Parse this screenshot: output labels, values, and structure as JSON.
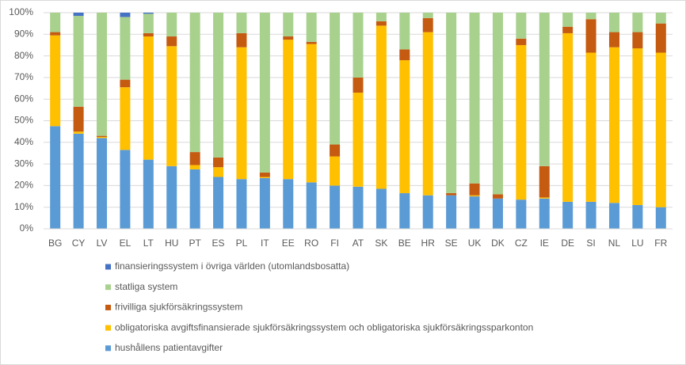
{
  "chart_data": {
    "type": "stacked_bar",
    "categories": [
      "BG",
      "CY",
      "LV",
      "EL",
      "LT",
      "HU",
      "PT",
      "ES",
      "PL",
      "IT",
      "EE",
      "RO",
      "FI",
      "AT",
      "SK",
      "BE",
      "HR",
      "SE",
      "UK",
      "DK",
      "CZ",
      "IE",
      "DE",
      "SI",
      "NL",
      "LU",
      "FR"
    ],
    "series": [
      {
        "name": "hushållens patientavgifter",
        "color": "#5b9bd5",
        "values": [
          47.5,
          44,
          42,
          36.5,
          32,
          29,
          27.5,
          24,
          23,
          23.5,
          23,
          21.5,
          20,
          19.5,
          18.5,
          16.5,
          15.5,
          15.5,
          15,
          14,
          13.5,
          14,
          12.5,
          12.5,
          12,
          11,
          10
        ]
      },
      {
        "name": "obligatoriska avgiftsfinansierade sjukförsäkringssystem och obligatoriska sjukförsäkringssparkonton",
        "color": "#ffc000",
        "values": [
          42,
          1,
          0.5,
          29,
          57,
          55.5,
          2,
          4.5,
          61,
          0.5,
          64.5,
          64,
          13.5,
          43.5,
          75.5,
          61.5,
          75.5,
          0,
          0.5,
          0,
          71.5,
          0.5,
          78,
          69,
          72,
          72.5,
          71.5
        ]
      },
      {
        "name": "frivilliga sjukförsäkringssystem",
        "color": "#c55a11",
        "values": [
          1.5,
          11.5,
          0.5,
          3.5,
          1.5,
          4.5,
          6,
          4.5,
          6.5,
          2,
          1.5,
          1,
          5.5,
          7,
          2,
          5,
          6.5,
          1,
          5.5,
          2,
          3,
          14.5,
          3,
          15.5,
          7,
          7.5,
          13.5
        ]
      },
      {
        "name": "statliga system",
        "color": "#a9d18e",
        "values": [
          9,
          42,
          57,
          29,
          9,
          11,
          64.5,
          67,
          9.5,
          74,
          11,
          13.5,
          61,
          30,
          4,
          17,
          2.5,
          83.5,
          79,
          84,
          12,
          71,
          6.5,
          3,
          9,
          9,
          5
        ]
      },
      {
        "name": "finansieringssystem i övriga världen (utomlandsbosatta)",
        "color": "#4472c4",
        "values": [
          0,
          1.5,
          0,
          2,
          0.5,
          0,
          0,
          0,
          0,
          0,
          0,
          0,
          0,
          0,
          0,
          0,
          0,
          0,
          0,
          0,
          0,
          0,
          0,
          0,
          0,
          0,
          0
        ]
      }
    ],
    "ylim": [
      0,
      100
    ],
    "yticks": [
      {
        "value": 0,
        "label": "0%"
      },
      {
        "value": 10,
        "label": "10%"
      },
      {
        "value": 20,
        "label": "20%"
      },
      {
        "value": 30,
        "label": "30%"
      },
      {
        "value": 40,
        "label": "40%"
      },
      {
        "value": 50,
        "label": "50%"
      },
      {
        "value": 60,
        "label": "60%"
      },
      {
        "value": 70,
        "label": "70%"
      },
      {
        "value": 80,
        "label": "80%"
      },
      {
        "value": 90,
        "label": "90%"
      },
      {
        "value": 100,
        "label": "100%"
      }
    ],
    "grid": true
  }
}
